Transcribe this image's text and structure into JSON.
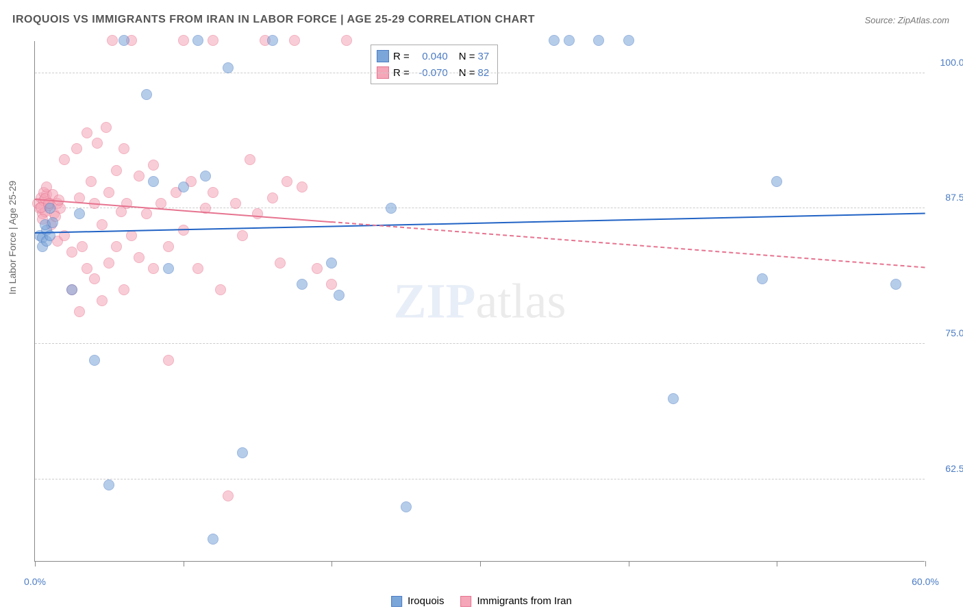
{
  "chart": {
    "type": "scatter",
    "title": "IROQUOIS VS IMMIGRANTS FROM IRAN IN LABOR FORCE | AGE 25-29 CORRELATION CHART",
    "source_label": "Source: ZipAtlas.com",
    "ylabel": "In Labor Force | Age 25-29",
    "watermark_zip": "ZIP",
    "watermark_atlas": "atlas",
    "background_color": "#ffffff",
    "grid_color": "#cccccc",
    "axis_color": "#888888",
    "title_color": "#555555",
    "title_fontsize": 16,
    "label_color": "#666666",
    "label_fontsize": 14,
    "tick_fontsize": 14,
    "xlim": [
      0,
      60
    ],
    "ylim": [
      55,
      103
    ],
    "x_ticks": [
      0,
      10,
      20,
      30,
      40,
      50,
      60
    ],
    "x_tick_labels": [
      "0.0%",
      "",
      "",
      "",
      "",
      "",
      "60.0%"
    ],
    "x_tick_color": "#4a7bc4",
    "y_gridlines": [
      62.5,
      75.0,
      87.5,
      100.0
    ],
    "y_tick_labels": [
      "62.5%",
      "75.0%",
      "87.5%",
      "100.0%"
    ],
    "y_tick_color": "#4a7bc4",
    "point_radius": 8,
    "point_opacity": 0.55,
    "series": [
      {
        "name": "Iroquois",
        "fill_color": "#7ba6d9",
        "stroke_color": "#4a7bc4",
        "r_label": "R =",
        "r_value": "0.040",
        "n_label": "N =",
        "n_value": "37",
        "trend": {
          "x1": 0,
          "y1": 85.2,
          "x2": 60,
          "y2": 87.0,
          "color": "#2163c4",
          "width": 2.5,
          "dash": "solid"
        },
        "points": [
          [
            0.3,
            85.0
          ],
          [
            0.5,
            84.8
          ],
          [
            0.8,
            85.5
          ],
          [
            0.5,
            84.0
          ],
          [
            0.7,
            86.0
          ],
          [
            1.0,
            87.5
          ],
          [
            1.2,
            86.2
          ],
          [
            0.8,
            84.5
          ],
          [
            1.0,
            85.0
          ],
          [
            2.5,
            80.0
          ],
          [
            3.0,
            87.0
          ],
          [
            4.0,
            73.5
          ],
          [
            5.0,
            62.0
          ],
          [
            6.0,
            103.0
          ],
          [
            7.5,
            98.0
          ],
          [
            8.0,
            90.0
          ],
          [
            9.0,
            82.0
          ],
          [
            10.0,
            89.5
          ],
          [
            11.0,
            103.0
          ],
          [
            11.5,
            90.5
          ],
          [
            12.0,
            57.0
          ],
          [
            13.0,
            100.5
          ],
          [
            14.0,
            65.0
          ],
          [
            16.0,
            103.0
          ],
          [
            18.0,
            80.5
          ],
          [
            20.0,
            82.5
          ],
          [
            20.5,
            79.5
          ],
          [
            24.0,
            87.5
          ],
          [
            25.0,
            60.0
          ],
          [
            35.0,
            103.0
          ],
          [
            36.0,
            103.0
          ],
          [
            38.0,
            103.0
          ],
          [
            40.0,
            103.0
          ],
          [
            43.0,
            70.0
          ],
          [
            49.0,
            81.0
          ],
          [
            50.0,
            90.0
          ],
          [
            58.0,
            80.5
          ]
        ]
      },
      {
        "name": "Immigrants from Iran",
        "fill_color": "#f5a6b8",
        "stroke_color": "#e6738f",
        "r_label": "R =",
        "r_value": "-0.070",
        "n_label": "N =",
        "n_value": "82",
        "trend": {
          "x1": 0,
          "y1": 88.3,
          "x2": 60,
          "y2": 82.0,
          "color": "#e6738f",
          "width": 2,
          "dash": "solid_then_dash",
          "solid_until_x": 20
        },
        "points": [
          [
            0.2,
            88.0
          ],
          [
            0.3,
            87.5
          ],
          [
            0.4,
            88.5
          ],
          [
            0.5,
            87.0
          ],
          [
            0.6,
            88.2
          ],
          [
            0.7,
            87.2
          ],
          [
            0.8,
            88.8
          ],
          [
            0.5,
            86.5
          ],
          [
            0.6,
            89.0
          ],
          [
            0.9,
            87.8
          ],
          [
            1.0,
            88.0
          ],
          [
            0.4,
            87.6
          ],
          [
            0.7,
            88.4
          ],
          [
            1.1,
            86.0
          ],
          [
            1.3,
            87.0
          ],
          [
            0.8,
            89.5
          ],
          [
            1.5,
            88.0
          ],
          [
            1.7,
            87.5
          ],
          [
            1.2,
            88.8
          ],
          [
            1.4,
            86.8
          ],
          [
            1.6,
            88.3
          ],
          [
            0.9,
            88.0
          ],
          [
            1.5,
            84.5
          ],
          [
            2.0,
            85.0
          ],
          [
            2.0,
            92.0
          ],
          [
            2.5,
            83.5
          ],
          [
            2.5,
            80.0
          ],
          [
            2.8,
            93.0
          ],
          [
            3.0,
            88.5
          ],
          [
            3.0,
            78.0
          ],
          [
            3.2,
            84.0
          ],
          [
            3.5,
            94.5
          ],
          [
            3.5,
            82.0
          ],
          [
            3.8,
            90.0
          ],
          [
            4.0,
            88.0
          ],
          [
            4.0,
            81.0
          ],
          [
            4.2,
            93.5
          ],
          [
            4.5,
            86.0
          ],
          [
            4.5,
            79.0
          ],
          [
            4.8,
            95.0
          ],
          [
            5.0,
            89.0
          ],
          [
            5.0,
            82.5
          ],
          [
            5.2,
            103.0
          ],
          [
            5.5,
            91.0
          ],
          [
            5.5,
            84.0
          ],
          [
            5.8,
            87.2
          ],
          [
            6.0,
            93.0
          ],
          [
            6.0,
            80.0
          ],
          [
            6.2,
            88.0
          ],
          [
            6.5,
            103.0
          ],
          [
            6.5,
            85.0
          ],
          [
            7.0,
            90.5
          ],
          [
            7.0,
            83.0
          ],
          [
            7.5,
            87.0
          ],
          [
            8.0,
            82.0
          ],
          [
            8.0,
            91.5
          ],
          [
            8.5,
            88.0
          ],
          [
            9.0,
            84.0
          ],
          [
            9.0,
            73.5
          ],
          [
            9.5,
            89.0
          ],
          [
            10.0,
            103.0
          ],
          [
            10.0,
            85.5
          ],
          [
            10.5,
            90.0
          ],
          [
            11.0,
            82.0
          ],
          [
            11.5,
            87.5
          ],
          [
            12.0,
            103.0
          ],
          [
            12.0,
            89.0
          ],
          [
            12.5,
            80.0
          ],
          [
            13.0,
            61.0
          ],
          [
            13.5,
            88.0
          ],
          [
            14.0,
            85.0
          ],
          [
            14.5,
            92.0
          ],
          [
            15.0,
            87.0
          ],
          [
            15.5,
            103.0
          ],
          [
            16.0,
            88.5
          ],
          [
            16.5,
            82.5
          ],
          [
            17.0,
            90.0
          ],
          [
            17.5,
            103.0
          ],
          [
            18.0,
            89.5
          ],
          [
            19.0,
            82.0
          ],
          [
            20.0,
            80.5
          ],
          [
            21.0,
            103.0
          ]
        ]
      }
    ],
    "bottom_legend": [
      {
        "label": "Iroquois",
        "fill": "#7ba6d9",
        "stroke": "#4a7bc4"
      },
      {
        "label": "Immigrants from Iran",
        "fill": "#f5a6b8",
        "stroke": "#e6738f"
      }
    ]
  }
}
